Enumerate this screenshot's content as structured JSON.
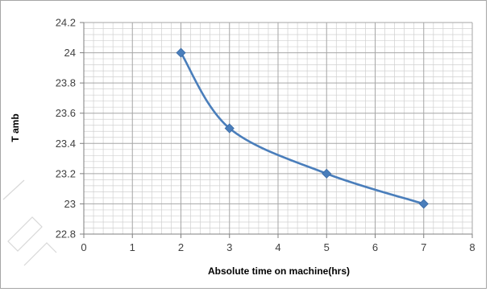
{
  "chart_data": {
    "type": "line",
    "title": "",
    "xlabel": "Absolute time on machine(hrs)",
    "ylabel": "T amb",
    "xlim": [
      0,
      8
    ],
    "ylim": [
      22.8,
      24.2
    ],
    "x_ticks": [
      0,
      1,
      2,
      3,
      4,
      5,
      6,
      7,
      8
    ],
    "x_tick_labels": [
      "0",
      "1",
      "2",
      "3",
      "4",
      "5",
      "6",
      "7",
      "8"
    ],
    "y_ticks": [
      22.8,
      23,
      23.2,
      23.4,
      23.6,
      23.8,
      24,
      24.2
    ],
    "y_tick_labels": [
      "22.8",
      "23",
      "23.2",
      "23.4",
      "23.6",
      "23.8",
      "24",
      "24.2"
    ],
    "grid": true,
    "minor_grid": true,
    "legend": "none",
    "series": [
      {
        "x": [
          2,
          3,
          5,
          7
        ],
        "y": [
          24.0,
          23.5,
          23.2,
          23.0
        ],
        "marker": "diamond",
        "smooth": true,
        "color": "#4a7ebb"
      }
    ],
    "colors": {
      "grid_major": "#a6a6a6",
      "grid_minor": "#d0d0d0",
      "axis": "#7f7f7f"
    }
  }
}
